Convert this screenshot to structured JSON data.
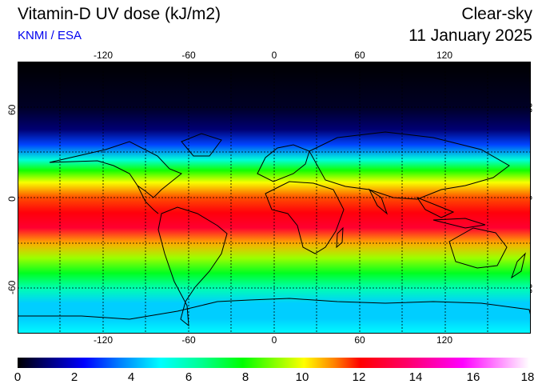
{
  "header": {
    "title": "Vitamin-D UV dose (kJ/m2)",
    "source": "KNMI / ESA",
    "condition": "Clear-sky",
    "date": "11 January 2025"
  },
  "axes": {
    "longitude_labels": [
      "-120",
      "-60",
      "0",
      "60",
      "120"
    ],
    "latitude_labels": [
      "60",
      "0",
      "-60"
    ]
  },
  "colorbar": {
    "min": 0,
    "max": 18,
    "tick_labels": [
      "0",
      "2",
      "4",
      "6",
      "8",
      "10",
      "12",
      "14",
      "16",
      "18"
    ],
    "colors": [
      "#000000",
      "#000066",
      "#0000ff",
      "#0080ff",
      "#00ffff",
      "#00ff90",
      "#00ff00",
      "#80ff00",
      "#ffff00",
      "#ff8000",
      "#ff0000",
      "#ff0066",
      "#ff00ff",
      "#ffffff"
    ]
  },
  "map": {
    "lon_range": [
      -180,
      180
    ],
    "lat_range": [
      -90,
      90
    ],
    "grid_spacing_deg": 30,
    "dose_profile": [
      {
        "lat": 90,
        "dose": 0
      },
      {
        "lat": 60,
        "dose": 0.5
      },
      {
        "lat": 45,
        "dose": 1.5
      },
      {
        "lat": 35,
        "dose": 3.5
      },
      {
        "lat": 25,
        "dose": 6
      },
      {
        "lat": 18,
        "dose": 8.5
      },
      {
        "lat": 10,
        "dose": 11
      },
      {
        "lat": 0,
        "dose": 13
      },
      {
        "lat": -10,
        "dose": 14
      },
      {
        "lat": -20,
        "dose": 14.5
      },
      {
        "lat": -30,
        "dose": 12
      },
      {
        "lat": -40,
        "dose": 10
      },
      {
        "lat": -50,
        "dose": 8
      },
      {
        "lat": -60,
        "dose": 6.5
      },
      {
        "lat": -70,
        "dose": 5
      },
      {
        "lat": -80,
        "dose": 5
      },
      {
        "lat": -90,
        "dose": 5.5
      }
    ]
  }
}
